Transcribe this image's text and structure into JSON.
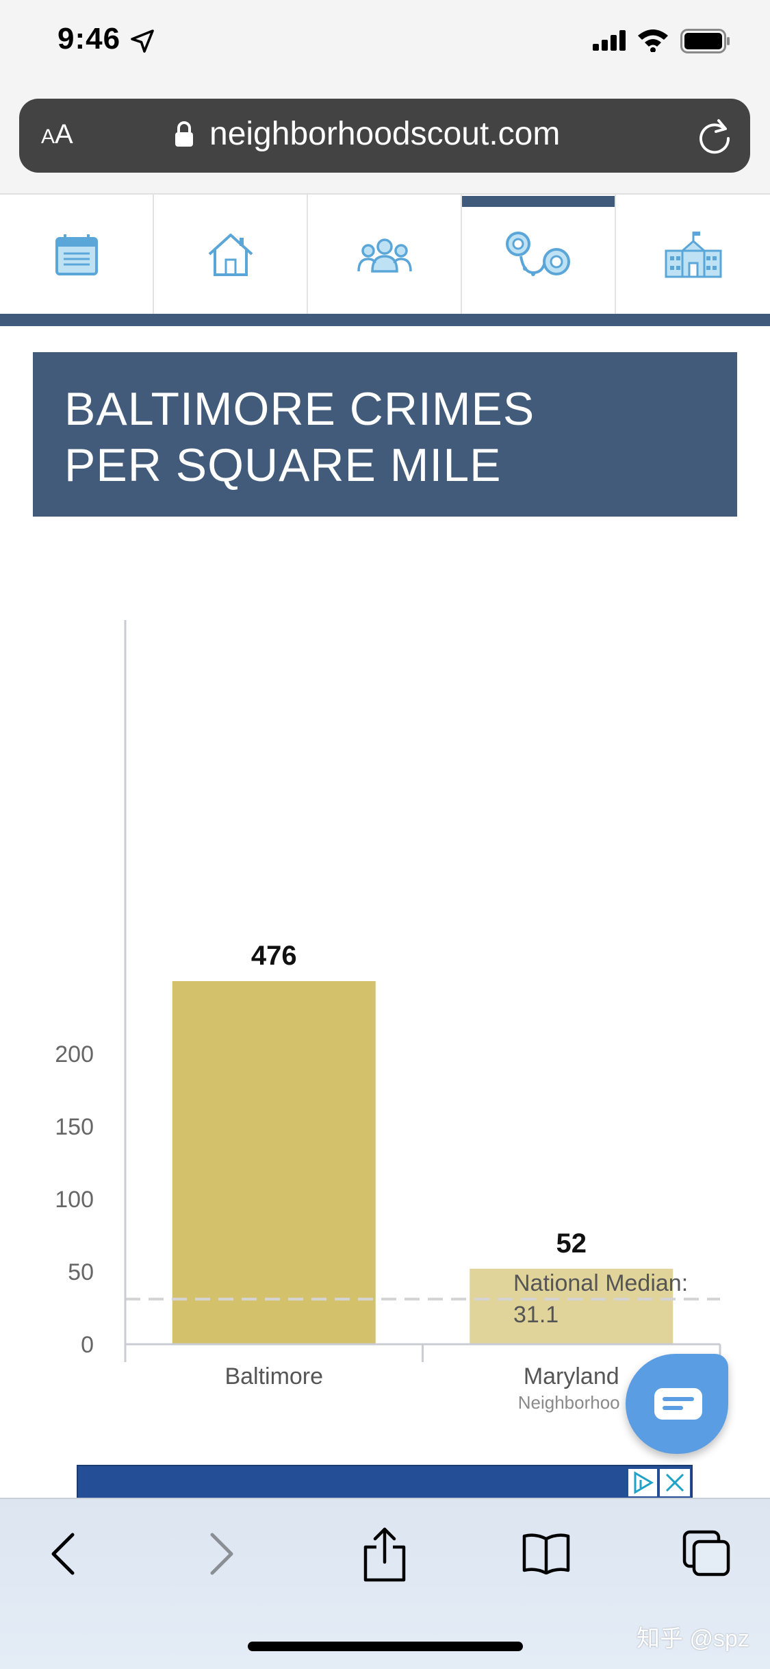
{
  "status_bar": {
    "time": "9:46"
  },
  "browser": {
    "aa_label_small": "A",
    "aa_label_large": "A",
    "url": "neighborhoodscout.com"
  },
  "nav_tabs": [
    {
      "icon": "overview-icon",
      "active": false
    },
    {
      "icon": "house-icon",
      "active": false
    },
    {
      "icon": "people-icon",
      "active": false
    },
    {
      "icon": "handcuffs-icon",
      "active": true
    },
    {
      "icon": "school-icon",
      "active": false
    }
  ],
  "page": {
    "title_line1": "BALTIMORE CRIMES",
    "title_line2": "PER SQUARE MILE"
  },
  "chart_data": {
    "type": "bar",
    "categories": [
      "Baltimore",
      "Maryland"
    ],
    "category_sublabels": [
      "",
      "Neighborhoo"
    ],
    "values": [
      476,
      52
    ],
    "value_labels": [
      "476",
      "52"
    ],
    "bar_colors": [
      "#d3c26b",
      "#e0d49b"
    ],
    "yticks": [
      0,
      50,
      100,
      150,
      200
    ],
    "ylim": [
      0,
      250
    ],
    "axis_break": true,
    "reference_line": {
      "value": 31.1,
      "label_line1": "National Median:",
      "label_line2": "31.1"
    }
  },
  "watermark": "知乎 @spz",
  "colors": {
    "nav_accent": "#3f5a7b",
    "title_bg": "#425b7a",
    "icon_blue": "#5aa6d9",
    "chat_blue": "#5b9de3"
  }
}
